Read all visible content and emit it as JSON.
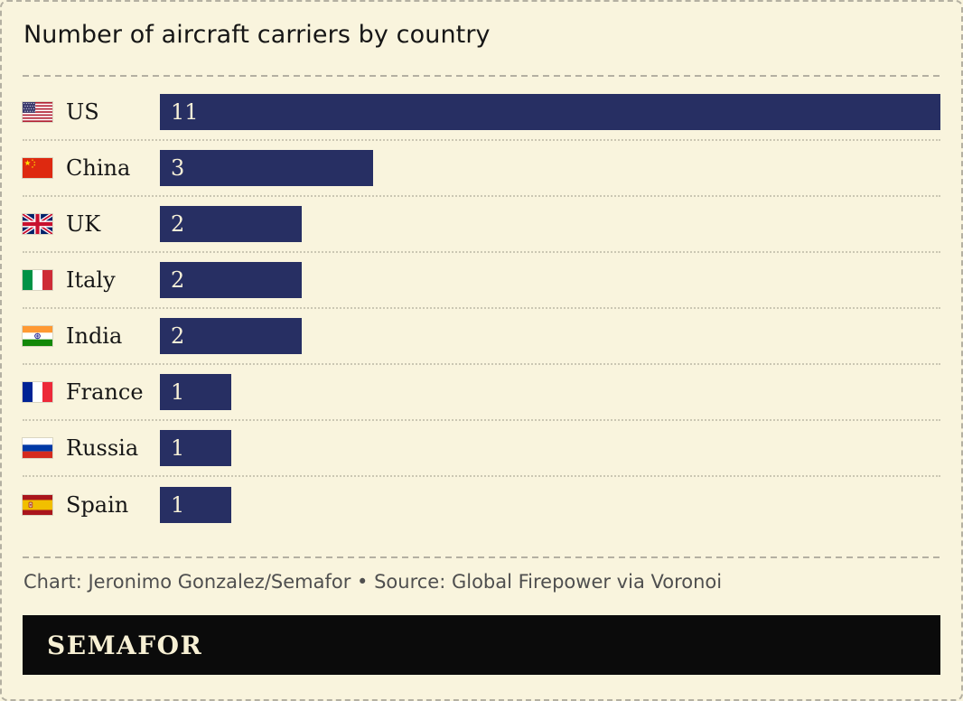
{
  "title": "Number of aircraft carriers by country",
  "chart_data": {
    "type": "bar",
    "orientation": "horizontal",
    "title": "Number of aircraft carriers by country",
    "categories": [
      "US",
      "China",
      "UK",
      "Italy",
      "India",
      "France",
      "Russia",
      "Spain"
    ],
    "values": [
      11,
      3,
      2,
      2,
      2,
      1,
      1,
      1
    ],
    "flag_codes": [
      "us",
      "cn",
      "gb",
      "it",
      "in",
      "fr",
      "ru",
      "es"
    ],
    "xlim": [
      0,
      11
    ],
    "grid": false,
    "legend": false,
    "value_labels": "inside-bar-left",
    "row_separators": "dotted"
  },
  "footer": {
    "credit": "Chart: Jeronimo Gonzalez/Semafor • Source: Global Firepower via Voronoi",
    "logo_text": "SEMAFOR"
  },
  "colors": {
    "background": "#f9f4dd",
    "bar": "#272f63",
    "bar_text": "#f9f2d8",
    "text": "#161616",
    "credit_text": "#4f4f4f",
    "logo_background": "#0b0b0b",
    "logo_text": "#f7f0d4",
    "dashed_border": "#b4b0a2",
    "row_separator": "#cbc7b3"
  }
}
